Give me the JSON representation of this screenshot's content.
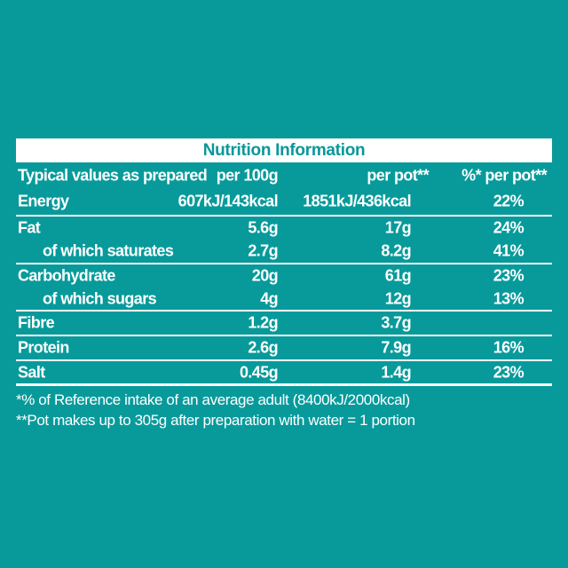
{
  "colors": {
    "background_teal": "#089a9b",
    "band_white": "#ffffff",
    "title_teal": "#0a9799",
    "table_text_white": "#ffffff"
  },
  "table": {
    "title": "Nutrition Information",
    "header": {
      "col1": "Typical values as prepared",
      "col2": "per 100g",
      "col3": "per pot**",
      "col4": "%* per pot**"
    },
    "rows": [
      {
        "label": "Energy",
        "per_100g": "607kJ/143kcal",
        "per_pot": "1851kJ/436kcal",
        "pct_per_pot": "22%"
      },
      {
        "label": "Fat",
        "per_100g": "5.6g",
        "per_pot": "17g",
        "pct_per_pot": "24%"
      },
      {
        "label": "of which saturates",
        "per_100g": "2.7g",
        "per_pot": "8.2g",
        "pct_per_pot": "41%"
      },
      {
        "label": "Carbohydrate",
        "per_100g": "20g",
        "per_pot": "61g",
        "pct_per_pot": "23%"
      },
      {
        "label": "of which sugars",
        "per_100g": "4g",
        "per_pot": "12g",
        "pct_per_pot": "13%"
      },
      {
        "label": "Fibre",
        "per_100g": "1.2g",
        "per_pot": "3.7g",
        "pct_per_pot": ""
      },
      {
        "label": "Protein",
        "per_100g": "2.6g",
        "per_pot": "7.9g",
        "pct_per_pot": "16%"
      },
      {
        "label": "Salt",
        "per_100g": "0.45g",
        "per_pot": "1.4g",
        "pct_per_pot": "23%"
      }
    ],
    "footnotes": [
      "*% of Reference intake of an average adult (8400kJ/2000kcal)",
      "**Pot makes up to 305g after preparation with water = 1 portion"
    ]
  }
}
